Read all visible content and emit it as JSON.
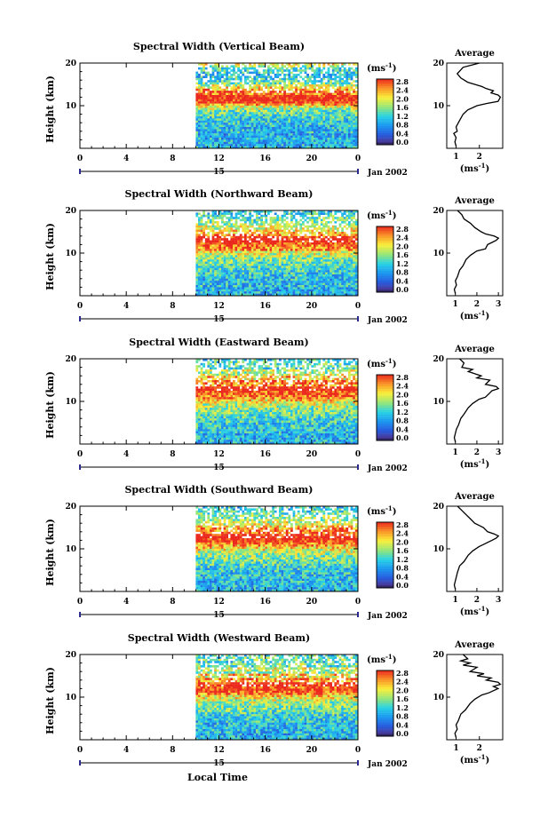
{
  "figure": {
    "x_axis_title": "Local Time",
    "height_label": "Height (km)",
    "cbar_unit": "(ms",
    "cbar_unit_exp": "-1",
    "avg_title": "Average",
    "avg_xlabel": "(ms",
    "avg_xlabel_exp": "-1",
    "date_label": "Jan 2002",
    "day_label": "15"
  },
  "chart_data": [
    {
      "type": "heatmap",
      "name": "vertical",
      "title": "Spectral Width (Vertical Beam)",
      "x_ticks": [
        "0",
        "4",
        "8",
        "12",
        "16",
        "20",
        "0"
      ],
      "x_range_hours": [
        0,
        24
      ],
      "data_start_hour": 10,
      "y_ticks": [
        "20",
        "10"
      ],
      "y_range_km": [
        0,
        20
      ],
      "colorbar": {
        "min": 0.0,
        "max": 2.8,
        "labels": [
          "2.8",
          "2.4",
          "2.0",
          "1.6",
          "1.2",
          "0.8",
          "0.4",
          "0.0"
        ]
      },
      "profile": {
        "x_ticks": [
          "1",
          "2"
        ],
        "x_range": [
          0.6,
          3.0
        ],
        "points": [
          [
            2.0,
            20
          ],
          [
            1.3,
            19
          ],
          [
            1.05,
            17.5
          ],
          [
            1.2,
            16.5
          ],
          [
            1.5,
            15.5
          ],
          [
            1.8,
            15
          ],
          [
            2.1,
            14.5
          ],
          [
            2.3,
            14
          ],
          [
            2.6,
            13.5
          ],
          [
            2.5,
            13
          ],
          [
            2.8,
            12.5
          ],
          [
            2.9,
            12
          ],
          [
            2.85,
            11.5
          ],
          [
            2.8,
            11
          ],
          [
            2.3,
            10.5
          ],
          [
            1.9,
            10
          ],
          [
            1.5,
            9
          ],
          [
            1.3,
            8
          ],
          [
            1.15,
            6.5
          ],
          [
            1.0,
            5
          ],
          [
            1.05,
            4
          ],
          [
            0.9,
            3.5
          ],
          [
            1.0,
            2.5
          ],
          [
            0.95,
            1.5
          ],
          [
            1.0,
            0.5
          ]
        ]
      }
    },
    {
      "type": "heatmap",
      "name": "northward",
      "title": "Spectral Width (Northward Beam)",
      "x_ticks": [
        "0",
        "4",
        "8",
        "12",
        "16",
        "20",
        "0"
      ],
      "x_range_hours": [
        0,
        24
      ],
      "data_start_hour": 10,
      "y_ticks": [
        "20",
        "10"
      ],
      "y_range_km": [
        0,
        20
      ],
      "colorbar": {
        "min": 0.0,
        "max": 2.8,
        "labels": [
          "2.8",
          "2.4",
          "2.0",
          "1.6",
          "1.2",
          "0.8",
          "0.4",
          "0.0"
        ]
      },
      "profile": {
        "x_ticks": [
          "1",
          "2",
          "3"
        ],
        "x_range": [
          0.6,
          3.2
        ],
        "points": [
          [
            1.1,
            20
          ],
          [
            1.3,
            19
          ],
          [
            1.4,
            18
          ],
          [
            1.7,
            17
          ],
          [
            1.9,
            16
          ],
          [
            2.2,
            15
          ],
          [
            2.4,
            14.5
          ],
          [
            2.8,
            14
          ],
          [
            3.0,
            13.5
          ],
          [
            2.9,
            13
          ],
          [
            2.7,
            12.5
          ],
          [
            2.5,
            12
          ],
          [
            2.4,
            11
          ],
          [
            2.0,
            10.5
          ],
          [
            1.7,
            9.5
          ],
          [
            1.5,
            8.5
          ],
          [
            1.35,
            7
          ],
          [
            1.2,
            6
          ],
          [
            1.1,
            4.5
          ],
          [
            1.0,
            3.5
          ],
          [
            1.05,
            2.5
          ],
          [
            0.95,
            1.5
          ],
          [
            1.0,
            0.5
          ]
        ]
      }
    },
    {
      "type": "heatmap",
      "name": "eastward",
      "title": "Spectral Width (Eastward Beam)",
      "x_ticks": [
        "0",
        "4",
        "8",
        "12",
        "16",
        "20",
        "0"
      ],
      "x_range_hours": [
        0,
        24
      ],
      "data_start_hour": 10,
      "y_ticks": [
        "20",
        "10"
      ],
      "y_range_km": [
        0,
        20
      ],
      "colorbar": {
        "min": 0.0,
        "max": 2.8,
        "labels": [
          "2.8",
          "2.4",
          "2.0",
          "1.6",
          "1.2",
          "0.8",
          "0.4",
          "0.0"
        ]
      },
      "profile": {
        "x_ticks": [
          "1",
          "2",
          "3"
        ],
        "x_range": [
          0.6,
          3.2
        ],
        "points": [
          [
            1.2,
            20
          ],
          [
            1.4,
            19
          ],
          [
            1.3,
            18
          ],
          [
            1.8,
            17.5
          ],
          [
            1.6,
            17
          ],
          [
            2.2,
            16
          ],
          [
            2.0,
            15.5
          ],
          [
            2.6,
            15
          ],
          [
            2.4,
            14
          ],
          [
            2.9,
            13.5
          ],
          [
            3.0,
            13
          ],
          [
            2.7,
            12.5
          ],
          [
            2.6,
            12
          ],
          [
            2.4,
            11
          ],
          [
            2.1,
            10.5
          ],
          [
            1.8,
            9.5
          ],
          [
            1.6,
            8.5
          ],
          [
            1.4,
            7
          ],
          [
            1.25,
            6
          ],
          [
            1.15,
            4.5
          ],
          [
            1.05,
            3.5
          ],
          [
            1.0,
            2.5
          ],
          [
            0.95,
            1.5
          ],
          [
            1.0,
            0.5
          ]
        ]
      }
    },
    {
      "type": "heatmap",
      "name": "southward",
      "title": "Spectral Width (Southward Beam)",
      "x_ticks": [
        "0",
        "4",
        "8",
        "12",
        "16",
        "20",
        "0"
      ],
      "x_range_hours": [
        0,
        24
      ],
      "data_start_hour": 10,
      "y_ticks": [
        "20",
        "10"
      ],
      "y_range_km": [
        0,
        20
      ],
      "colorbar": {
        "min": 0.0,
        "max": 2.8,
        "labels": [
          "2.8",
          "2.4",
          "2.0",
          "1.6",
          "1.2",
          "0.8",
          "0.4",
          "0.0"
        ]
      },
      "profile": {
        "x_ticks": [
          "1",
          "2",
          "3"
        ],
        "x_range": [
          0.6,
          3.2
        ],
        "points": [
          [
            1.1,
            20
          ],
          [
            1.3,
            19
          ],
          [
            1.5,
            18
          ],
          [
            1.7,
            17
          ],
          [
            1.9,
            16
          ],
          [
            2.1,
            15.5
          ],
          [
            2.3,
            15
          ],
          [
            2.5,
            14
          ],
          [
            2.8,
            13.5
          ],
          [
            3.0,
            13
          ],
          [
            2.9,
            12.5
          ],
          [
            2.7,
            12
          ],
          [
            2.5,
            11.5
          ],
          [
            2.3,
            11
          ],
          [
            2.1,
            10.5
          ],
          [
            1.8,
            9.5
          ],
          [
            1.6,
            8.5
          ],
          [
            1.4,
            7
          ],
          [
            1.2,
            6
          ],
          [
            1.1,
            4.5
          ],
          [
            1.05,
            3.5
          ],
          [
            1.0,
            2.5
          ],
          [
            0.95,
            1.5
          ],
          [
            1.0,
            0.5
          ]
        ]
      }
    },
    {
      "type": "heatmap",
      "name": "westward",
      "title": "Spectral Width (Westward Beam)",
      "x_ticks": [
        "0",
        "4",
        "8",
        "12",
        "16",
        "20",
        "0"
      ],
      "x_range_hours": [
        0,
        24
      ],
      "data_start_hour": 10,
      "y_ticks": [
        "20",
        "10"
      ],
      "y_range_km": [
        0,
        20
      ],
      "colorbar": {
        "min": 0.0,
        "max": 2.8,
        "labels": [
          "2.8",
          "2.4",
          "2.0",
          "1.6",
          "1.2",
          "0.8",
          "0.4",
          "0.0"
        ]
      },
      "profile": {
        "x_ticks": [
          "1",
          "2"
        ],
        "x_range": [
          0.6,
          3.0
        ],
        "points": [
          [
            1.3,
            20
          ],
          [
            1.5,
            19
          ],
          [
            1.2,
            18.5
          ],
          [
            1.6,
            18
          ],
          [
            1.3,
            17.5
          ],
          [
            1.9,
            17
          ],
          [
            1.6,
            16
          ],
          [
            2.2,
            15.5
          ],
          [
            1.9,
            15
          ],
          [
            2.5,
            14.5
          ],
          [
            2.3,
            14
          ],
          [
            2.8,
            13.5
          ],
          [
            2.9,
            13
          ],
          [
            2.6,
            12.5
          ],
          [
            2.8,
            12
          ],
          [
            2.4,
            11
          ],
          [
            2.1,
            10.5
          ],
          [
            1.8,
            9.5
          ],
          [
            1.6,
            8.5
          ],
          [
            1.4,
            7
          ],
          [
            1.2,
            6
          ],
          [
            1.1,
            4.5
          ],
          [
            1.0,
            3.5
          ],
          [
            1.05,
            2.5
          ],
          [
            0.95,
            1.5
          ],
          [
            1.0,
            0.5
          ]
        ]
      }
    }
  ]
}
